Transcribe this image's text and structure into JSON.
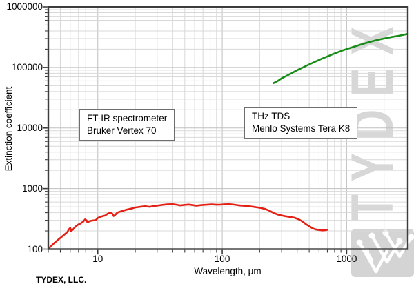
{
  "watermark": {
    "text": "TYDEX",
    "logo": "tydex-branches-logo"
  },
  "credit": "TYDEX, LLC.",
  "colors": {
    "red_series": "#e42015",
    "green_series": "#168c16",
    "grid_minor": "#d8d8d8",
    "grid_major": "#bfbfbf",
    "frame": "#3c3c3c",
    "watermark": "#d7d7d7",
    "annotation_border": "#6e6e6e"
  },
  "chart_data": {
    "type": "line",
    "title": "",
    "xlabel": "Wavelength, μm",
    "ylabel": "Extinction coefficient",
    "xscale": "log",
    "yscale": "log",
    "xlim": [
      4,
      3100
    ],
    "ylim": [
      100,
      1000000
    ],
    "x_ticks": [
      10,
      100,
      1000
    ],
    "y_ticks": [
      100,
      1000,
      10000,
      100000,
      1000000
    ],
    "grid": "major and minor log grid, light gray",
    "legend_position": "none (labeled text boxes inside plot)",
    "annotations": [
      {
        "lines": [
          "FT-IR spectrometer",
          "Bruker Vertex 70"
        ]
      },
      {
        "lines": [
          "THz TDS",
          "Menlo Systems Tera K8"
        ]
      }
    ],
    "series": [
      {
        "name": "FT-IR spectrometer Bruker Vertex 70",
        "color": "#e42015",
        "points": [
          [
            4.0,
            100
          ],
          [
            4.2,
            112
          ],
          [
            4.5,
            128
          ],
          [
            4.8,
            143
          ],
          [
            5.1,
            158
          ],
          [
            5.4,
            175
          ],
          [
            5.7,
            192
          ],
          [
            5.85,
            212
          ],
          [
            6.0,
            225
          ],
          [
            6.1,
            200
          ],
          [
            6.3,
            210
          ],
          [
            6.6,
            235
          ],
          [
            6.9,
            252
          ],
          [
            7.2,
            262
          ],
          [
            7.6,
            282
          ],
          [
            7.9,
            310
          ],
          [
            8.1,
            300
          ],
          [
            8.25,
            278
          ],
          [
            8.6,
            290
          ],
          [
            9.0,
            297
          ],
          [
            9.4,
            299
          ],
          [
            9.7,
            305
          ],
          [
            10.0,
            328
          ],
          [
            10.5,
            342
          ],
          [
            11,
            352
          ],
          [
            11.5,
            360
          ],
          [
            12,
            385
          ],
          [
            12.5,
            398
          ],
          [
            13,
            390
          ],
          [
            13.4,
            352
          ],
          [
            13.8,
            368
          ],
          [
            14.3,
            400
          ],
          [
            15,
            415
          ],
          [
            16,
            432
          ],
          [
            17,
            448
          ],
          [
            18,
            460
          ],
          [
            19,
            472
          ],
          [
            20,
            488
          ],
          [
            22,
            500
          ],
          [
            24,
            512
          ],
          [
            26,
            500
          ],
          [
            28,
            512
          ],
          [
            30,
            523
          ],
          [
            33,
            538
          ],
          [
            36,
            548
          ],
          [
            40,
            552
          ],
          [
            43,
            540
          ],
          [
            46,
            527
          ],
          [
            50,
            538
          ],
          [
            54,
            545
          ],
          [
            58,
            532
          ],
          [
            62,
            522
          ],
          [
            68,
            533
          ],
          [
            75,
            541
          ],
          [
            82,
            548
          ],
          [
            90,
            540
          ],
          [
            97,
            543
          ],
          [
            105,
            550
          ],
          [
            115,
            552
          ],
          [
            125,
            542
          ],
          [
            135,
            530
          ],
          [
            150,
            520
          ],
          [
            165,
            510
          ],
          [
            180,
            498
          ],
          [
            200,
            482
          ],
          [
            220,
            462
          ],
          [
            240,
            430
          ],
          [
            260,
            395
          ],
          [
            280,
            372
          ],
          [
            300,
            360
          ],
          [
            320,
            350
          ],
          [
            350,
            340
          ],
          [
            380,
            330
          ],
          [
            410,
            312
          ],
          [
            440,
            288
          ],
          [
            470,
            258
          ],
          [
            500,
            240
          ],
          [
            530,
            222
          ],
          [
            560,
            212
          ],
          [
            600,
            207
          ],
          [
            640,
            204
          ],
          [
            680,
            206
          ],
          [
            700,
            209
          ]
        ]
      },
      {
        "name": "THz TDS Menlo Systems Tera K8",
        "color": "#168c16",
        "points": [
          [
            258,
            55000
          ],
          [
            280,
            60000
          ],
          [
            300,
            66000
          ],
          [
            330,
            73000
          ],
          [
            360,
            80000
          ],
          [
            400,
            90000
          ],
          [
            450,
            101000
          ],
          [
            500,
            112000
          ],
          [
            560,
            125000
          ],
          [
            630,
            139000
          ],
          [
            700,
            152000
          ],
          [
            800,
            170000
          ],
          [
            900,
            186000
          ],
          [
            1000,
            201000
          ],
          [
            1150,
            220000
          ],
          [
            1300,
            238000
          ],
          [
            1500,
            260000
          ],
          [
            1700,
            279000
          ],
          [
            2000,
            300000
          ],
          [
            2300,
            318000
          ],
          [
            2600,
            332000
          ],
          [
            2900,
            347000
          ],
          [
            3100,
            358000
          ]
        ]
      }
    ]
  }
}
